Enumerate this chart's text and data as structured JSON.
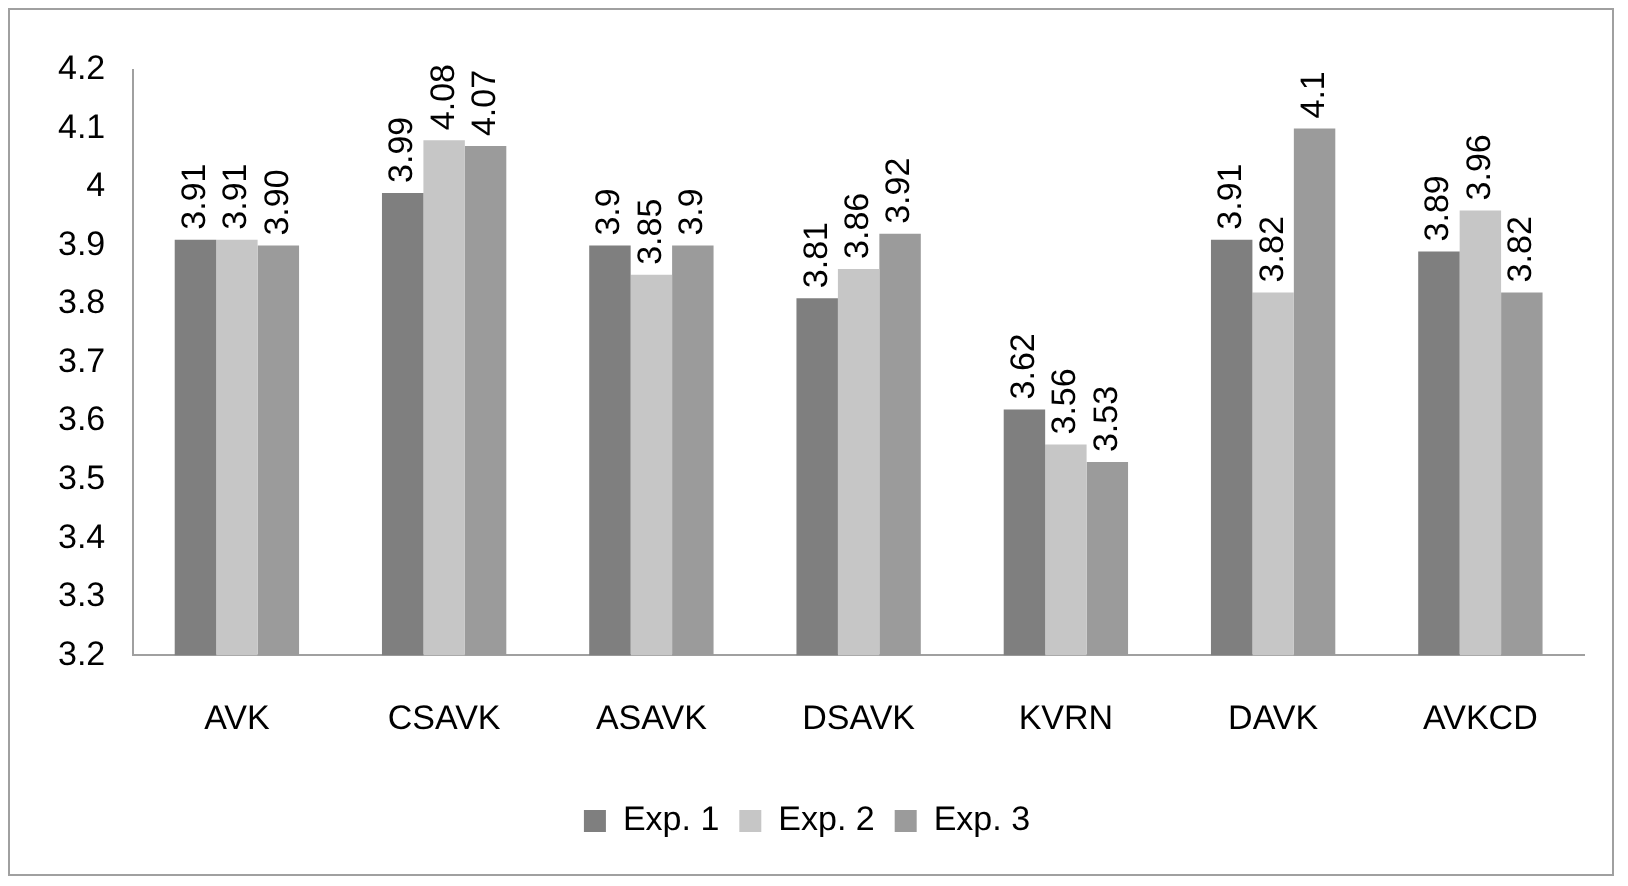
{
  "chart_data": {
    "type": "bar",
    "categories": [
      "AVK",
      "CSAVK",
      "ASAVK",
      "DSAVK",
      "KVRN",
      "DAVK",
      "AVKCD"
    ],
    "series": [
      {
        "name": "Exp. 1",
        "color": "#7f7f7f",
        "values": [
          3.91,
          3.99,
          3.9,
          3.81,
          3.62,
          3.91,
          3.89
        ],
        "value_labels": [
          "3.91",
          "3.99",
          "3.9",
          "3.81",
          "3.62",
          "3.91",
          "3.89"
        ]
      },
      {
        "name": "Exp. 2",
        "color": "#c6c6c6",
        "values": [
          3.91,
          4.08,
          3.85,
          3.86,
          3.56,
          3.82,
          3.96
        ],
        "value_labels": [
          "3.91",
          "4.08",
          "3.85",
          "3.86",
          "3.56",
          "3.82",
          "3.96"
        ]
      },
      {
        "name": "Exp. 3",
        "color": "#9b9b9b",
        "values": [
          3.9,
          4.07,
          3.9,
          3.92,
          3.53,
          4.1,
          3.82
        ],
        "value_labels": [
          "3.90",
          "4.07",
          "3.9",
          "3.92",
          "3.53",
          "4.1",
          "3.82"
        ]
      }
    ],
    "ylim": [
      3.2,
      4.2
    ],
    "yticks": [
      3.2,
      3.3,
      3.4,
      3.5,
      3.6,
      3.7,
      3.8,
      3.9,
      4,
      4.1,
      4.2
    ],
    "grid": false,
    "legend": "bottom"
  }
}
